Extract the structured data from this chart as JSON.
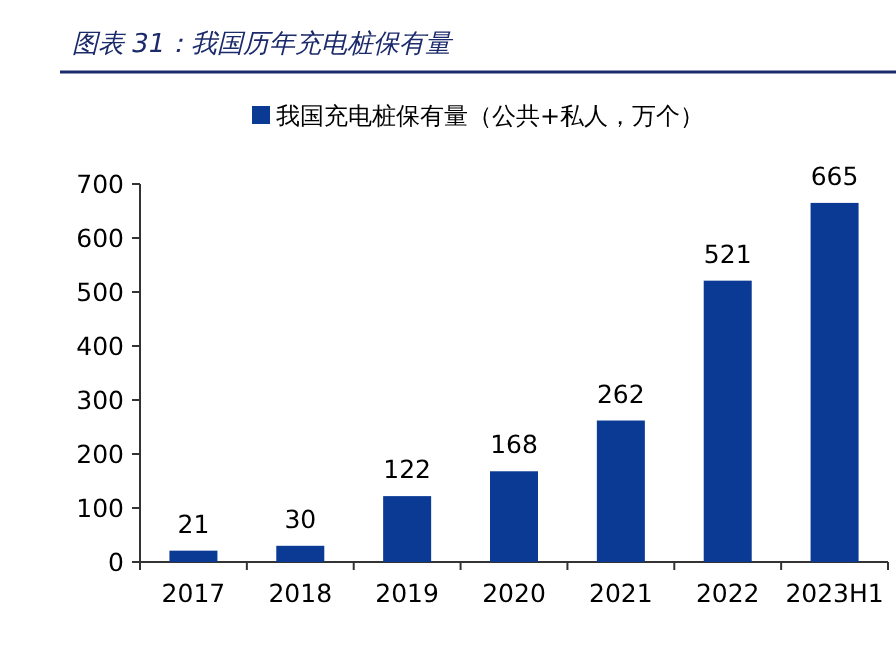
{
  "chart_data": {
    "type": "bar",
    "title": "图表 31：我国历年充电桩保有量",
    "categories": [
      "2017",
      "2018",
      "2019",
      "2020",
      "2021",
      "2022",
      "2023H1"
    ],
    "series": [
      {
        "name": "我国充电桩保有量（公共+私人，万个）",
        "color": "#0a3a94",
        "values": [
          21,
          30,
          122,
          168,
          262,
          521,
          665
        ]
      }
    ],
    "ylim": [
      0,
      700
    ],
    "yticks": [
      0,
      100,
      200,
      300,
      400,
      500,
      600,
      700
    ],
    "data_labels": true,
    "legend": "top",
    "grid": false
  }
}
